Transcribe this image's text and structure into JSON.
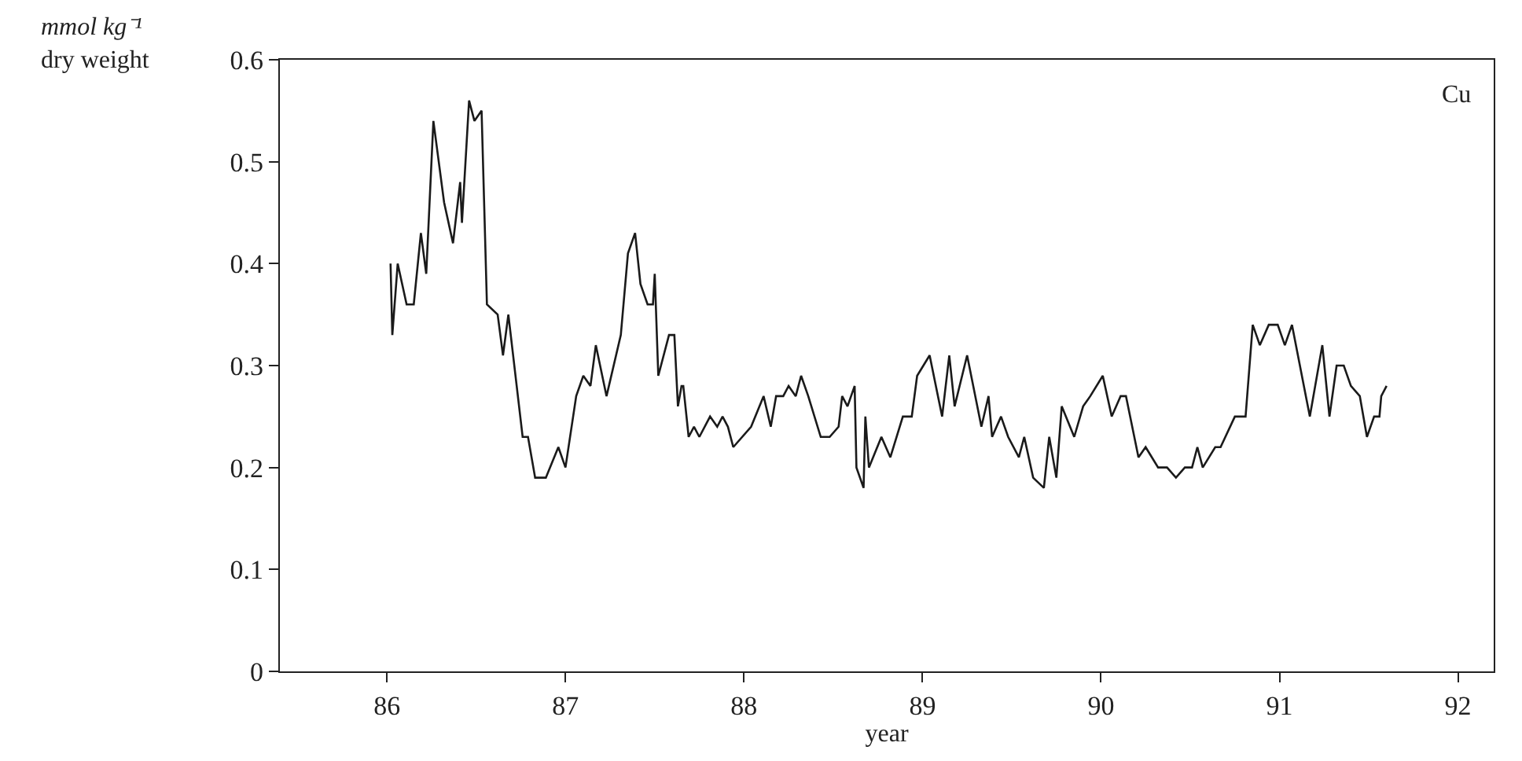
{
  "chart_data": {
    "type": "line",
    "xlabel": "year",
    "ylabel": "mmol kg⁻¹\ndry weight",
    "annotations": [
      "Cu"
    ],
    "xlim": [
      85.4,
      92.2
    ],
    "ylim": [
      0,
      0.6
    ],
    "xticks": [
      86,
      87,
      88,
      89,
      90,
      91,
      92
    ],
    "yticks": [
      0,
      0.1,
      0.2,
      0.3,
      0.4,
      0.5,
      0.6
    ],
    "marker": "none",
    "line_style": "solid",
    "series": [
      {
        "color": "#1a1a1a",
        "x": [
          86.02,
          86.03,
          86.06,
          86.11,
          86.15,
          86.19,
          86.22,
          86.26,
          86.32,
          86.37,
          86.41,
          86.42,
          86.46,
          86.49,
          86.53,
          86.56,
          86.62,
          86.65,
          86.68,
          86.76,
          86.79,
          86.83,
          86.89,
          86.96,
          87.0,
          87.06,
          87.1,
          87.14,
          87.17,
          87.23,
          87.31,
          87.35,
          87.39,
          87.42,
          87.46,
          87.49,
          87.5,
          87.52,
          87.58,
          87.61,
          87.63,
          87.65,
          87.66,
          87.69,
          87.72,
          87.75,
          87.81,
          87.85,
          87.88,
          87.91,
          87.94,
          88.04,
          88.11,
          88.15,
          88.18,
          88.22,
          88.25,
          88.29,
          88.32,
          88.36,
          88.43,
          88.48,
          88.53,
          88.55,
          88.58,
          88.62,
          88.63,
          88.67,
          88.68,
          88.7,
          88.77,
          88.82,
          88.89,
          88.94,
          88.97,
          89.04,
          89.11,
          89.15,
          89.18,
          89.25,
          89.33,
          89.37,
          89.39,
          89.44,
          89.48,
          89.54,
          89.57,
          89.62,
          89.68,
          89.71,
          89.75,
          89.78,
          89.85,
          89.9,
          89.94,
          90.01,
          90.06,
          90.11,
          90.14,
          90.21,
          90.25,
          90.32,
          90.37,
          90.42,
          90.47,
          90.51,
          90.54,
          90.57,
          90.64,
          90.67,
          90.75,
          90.81,
          90.85,
          90.89,
          90.94,
          90.99,
          91.03,
          91.07,
          91.17,
          91.24,
          91.28,
          91.32,
          91.36,
          91.4,
          91.45,
          91.49,
          91.53,
          91.56,
          91.57,
          91.6
        ],
        "values": [
          0.4,
          0.33,
          0.4,
          0.36,
          0.36,
          0.43,
          0.39,
          0.54,
          0.46,
          0.42,
          0.48,
          0.44,
          0.56,
          0.54,
          0.55,
          0.36,
          0.35,
          0.31,
          0.35,
          0.23,
          0.23,
          0.19,
          0.19,
          0.22,
          0.2,
          0.27,
          0.29,
          0.28,
          0.32,
          0.27,
          0.33,
          0.41,
          0.43,
          0.38,
          0.36,
          0.36,
          0.39,
          0.29,
          0.33,
          0.33,
          0.26,
          0.28,
          0.28,
          0.23,
          0.24,
          0.23,
          0.25,
          0.24,
          0.25,
          0.24,
          0.22,
          0.24,
          0.27,
          0.24,
          0.27,
          0.27,
          0.28,
          0.27,
          0.29,
          0.27,
          0.23,
          0.23,
          0.24,
          0.27,
          0.26,
          0.28,
          0.2,
          0.18,
          0.25,
          0.2,
          0.23,
          0.21,
          0.25,
          0.25,
          0.29,
          0.31,
          0.25,
          0.31,
          0.26,
          0.31,
          0.24,
          0.27,
          0.23,
          0.25,
          0.23,
          0.21,
          0.23,
          0.19,
          0.18,
          0.23,
          0.19,
          0.26,
          0.23,
          0.26,
          0.27,
          0.29,
          0.25,
          0.27,
          0.27,
          0.21,
          0.22,
          0.2,
          0.2,
          0.19,
          0.2,
          0.2,
          0.22,
          0.2,
          0.22,
          0.22,
          0.25,
          0.25,
          0.34,
          0.32,
          0.34,
          0.34,
          0.32,
          0.34,
          0.25,
          0.32,
          0.25,
          0.3,
          0.3,
          0.28,
          0.27,
          0.23,
          0.25,
          0.25,
          0.27,
          0.28
        ]
      }
    ]
  }
}
